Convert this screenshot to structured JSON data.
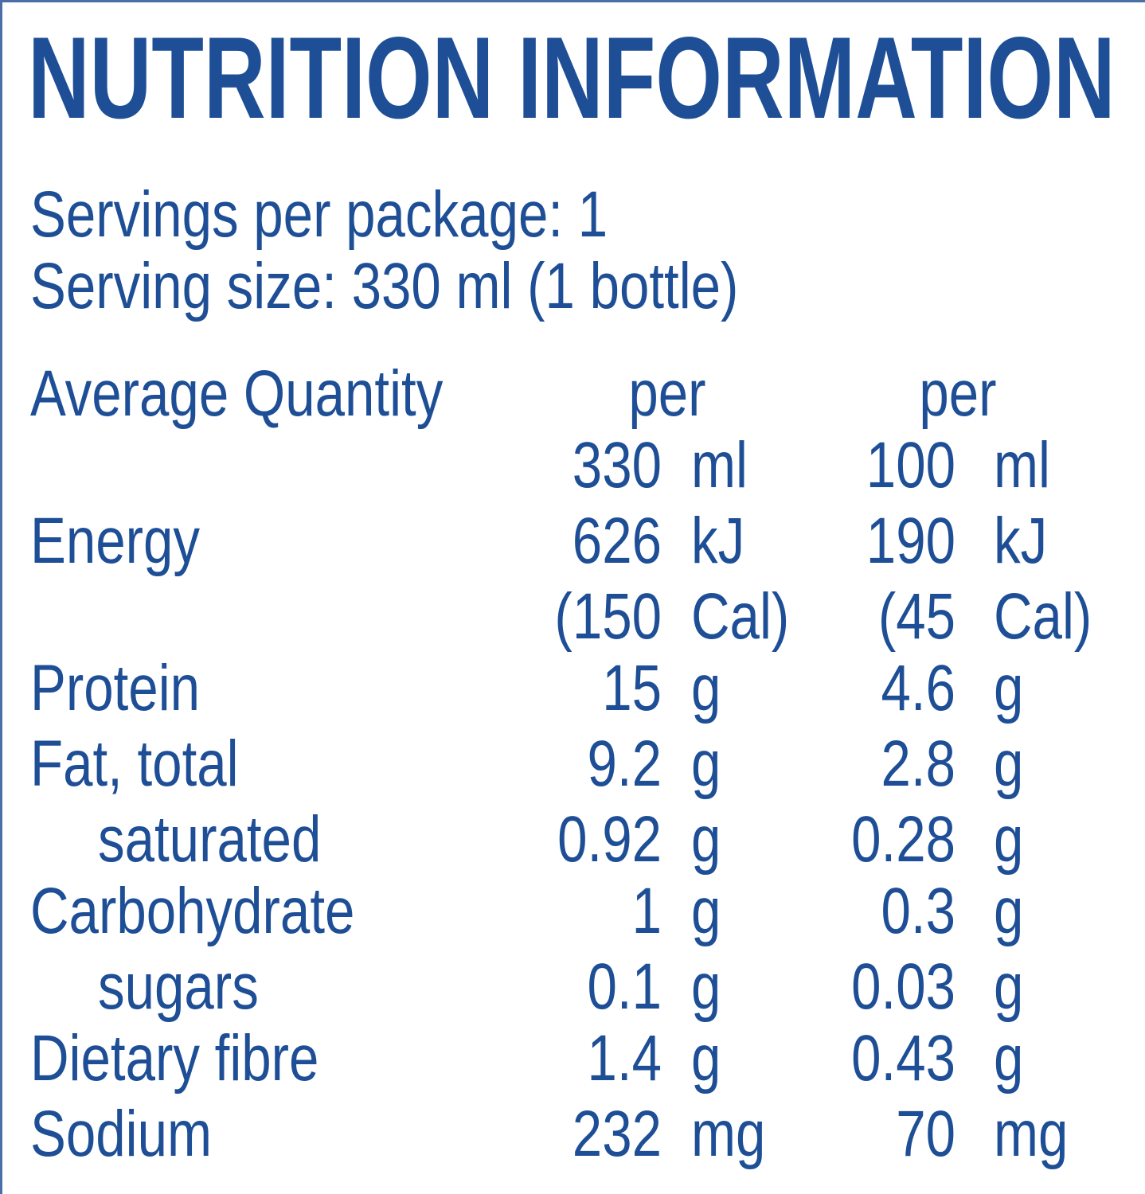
{
  "title": "NUTRITION INFORMATION",
  "servings_per_package": "Servings per package: 1",
  "serving_size": "Serving size: 330 ml (1 bottle)",
  "header": {
    "label": "Average Quantity",
    "col1": {
      "per": "per",
      "amount": "330",
      "unit": "ml"
    },
    "col2": {
      "per": "per",
      "amount": "100",
      "unit": "ml"
    }
  },
  "energy": {
    "label": "Energy",
    "col1": {
      "kj": "626",
      "kj_unit": "kJ",
      "cal": "(150",
      "cal_unit": "Cal)"
    },
    "col2": {
      "kj": "190",
      "kj_unit": "kJ",
      "cal": "(45",
      "cal_unit": "Cal)"
    }
  },
  "rows": [
    {
      "label": "Protein",
      "indent": false,
      "v1": "15",
      "u1": "g",
      "v2": "4.6",
      "u2": "g"
    },
    {
      "label": "Fat, total",
      "indent": false,
      "v1": "9.2",
      "u1": "g",
      "v2": "2.8",
      "u2": "g"
    },
    {
      "label": "saturated",
      "indent": true,
      "v1": "0.92",
      "u1": "g",
      "v2": "0.28",
      "u2": "g"
    },
    {
      "label": "Carbohydrate",
      "indent": false,
      "v1": "1",
      "u1": "g",
      "v2": "0.3",
      "u2": "g"
    },
    {
      "label": "sugars",
      "indent": true,
      "v1": "0.1",
      "u1": "g",
      "v2": "0.03",
      "u2": "g"
    },
    {
      "label": "Dietary fibre",
      "indent": false,
      "v1": "1.4",
      "u1": "g",
      "v2": "0.43",
      "u2": "g"
    },
    {
      "label": "Sodium",
      "indent": false,
      "v1": "232",
      "u1": "mg",
      "v2": "70",
      "u2": "mg"
    }
  ],
  "colors": {
    "text": "#1e4f96",
    "border": "#4a6fa8"
  }
}
